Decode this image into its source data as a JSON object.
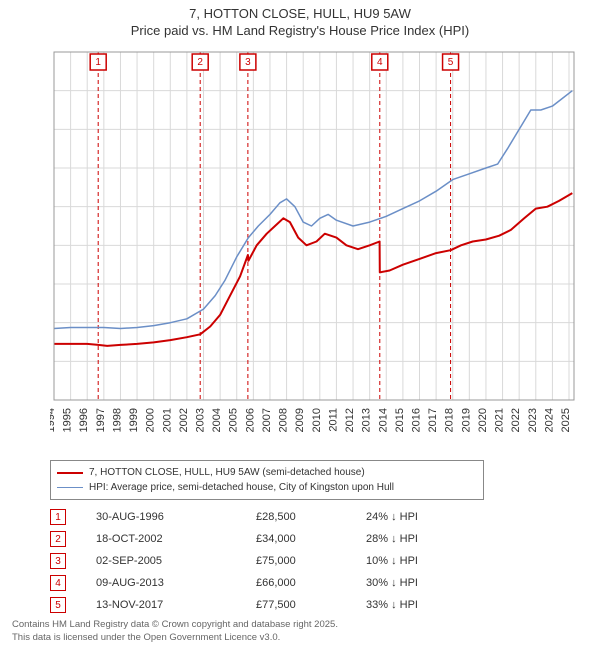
{
  "title_line1": "7, HOTTON CLOSE, HULL, HU9 5AW",
  "title_line2": "Price paid vs. HM Land Registry's House Price Index (HPI)",
  "chart": {
    "type": "line",
    "background_color": "#ffffff",
    "grid_color": "#d9d9d9",
    "x_years": [
      1994,
      1995,
      1996,
      1997,
      1998,
      1999,
      2000,
      2001,
      2002,
      2003,
      2004,
      2005,
      2006,
      2007,
      2008,
      2009,
      2010,
      2011,
      2012,
      2013,
      2014,
      2015,
      2016,
      2017,
      2018,
      2019,
      2020,
      2021,
      2022,
      2023,
      2024,
      2025
    ],
    "ylim": [
      0,
      180000
    ],
    "ytick_step": 20000,
    "ytick_labels": [
      "£0",
      "£20K",
      "£40K",
      "£60K",
      "£80K",
      "£100K",
      "£120K",
      "£140K",
      "£160K",
      "£180K"
    ],
    "series": [
      {
        "name": "hpi",
        "label": "HPI: Average price, semi-detached house, City of Kingston upon Hull",
        "color": "#6b8fc7",
        "width": 1.5,
        "points": [
          [
            1994.0,
            37000
          ],
          [
            1995.0,
            37500
          ],
          [
            1996.0,
            37500
          ],
          [
            1997.0,
            37500
          ],
          [
            1998.0,
            37000
          ],
          [
            1999.0,
            37500
          ],
          [
            2000.0,
            38500
          ],
          [
            2001.0,
            40000
          ],
          [
            2002.0,
            42000
          ],
          [
            2003.0,
            47000
          ],
          [
            2003.7,
            54000
          ],
          [
            2004.3,
            62000
          ],
          [
            2005.0,
            74000
          ],
          [
            2005.7,
            84000
          ],
          [
            2006.3,
            90000
          ],
          [
            2007.0,
            96000
          ],
          [
            2007.6,
            102000
          ],
          [
            2008.0,
            104000
          ],
          [
            2008.5,
            100000
          ],
          [
            2009.0,
            92000
          ],
          [
            2009.5,
            90000
          ],
          [
            2010.0,
            94000
          ],
          [
            2010.5,
            96000
          ],
          [
            2011.0,
            93000
          ],
          [
            2012.0,
            90000
          ],
          [
            2013.0,
            92000
          ],
          [
            2014.0,
            95000
          ],
          [
            2015.0,
            99000
          ],
          [
            2016.0,
            103000
          ],
          [
            2017.0,
            108000
          ],
          [
            2018.0,
            114000
          ],
          [
            2019.0,
            117000
          ],
          [
            2020.0,
            120000
          ],
          [
            2020.7,
            122000
          ],
          [
            2021.3,
            130000
          ],
          [
            2022.0,
            140000
          ],
          [
            2022.7,
            150000
          ],
          [
            2023.3,
            150000
          ],
          [
            2024.0,
            152000
          ],
          [
            2024.6,
            156000
          ],
          [
            2025.2,
            160000
          ]
        ]
      },
      {
        "name": "price_paid",
        "label": "7, HOTTON CLOSE, HULL, HU9 5AW (semi-detached house)",
        "color": "#cc0000",
        "width": 2,
        "points": [
          [
            1994.0,
            29000
          ],
          [
            1995.0,
            29000
          ],
          [
            1996.0,
            29000
          ],
          [
            1996.66,
            28500
          ],
          [
            1997.2,
            28000
          ],
          [
            1998.0,
            28500
          ],
          [
            1999.0,
            29000
          ],
          [
            2000.0,
            29800
          ],
          [
            2001.0,
            31000
          ],
          [
            2002.0,
            32500
          ],
          [
            2002.8,
            34000
          ],
          [
            2003.4,
            38000
          ],
          [
            2004.0,
            44000
          ],
          [
            2004.6,
            54000
          ],
          [
            2005.2,
            64000
          ],
          [
            2005.67,
            75000
          ],
          [
            2005.7,
            72000
          ],
          [
            2006.2,
            80000
          ],
          [
            2006.8,
            86000
          ],
          [
            2007.3,
            90000
          ],
          [
            2007.8,
            94000
          ],
          [
            2008.2,
            92000
          ],
          [
            2008.7,
            84000
          ],
          [
            2009.2,
            80000
          ],
          [
            2009.8,
            82000
          ],
          [
            2010.3,
            86000
          ],
          [
            2011.0,
            84000
          ],
          [
            2011.6,
            80000
          ],
          [
            2012.3,
            78000
          ],
          [
            2013.0,
            80000
          ],
          [
            2013.6,
            82000
          ],
          [
            2013.61,
            66000
          ],
          [
            2014.2,
            67000
          ],
          [
            2015.0,
            70000
          ],
          [
            2016.0,
            73000
          ],
          [
            2017.0,
            76000
          ],
          [
            2017.87,
            77500
          ],
          [
            2017.88,
            77500
          ],
          [
            2018.5,
            80000
          ],
          [
            2019.2,
            82000
          ],
          [
            2020.0,
            83000
          ],
          [
            2020.8,
            85000
          ],
          [
            2021.5,
            88000
          ],
          [
            2022.3,
            94000
          ],
          [
            2023.0,
            99000
          ],
          [
            2023.7,
            100000
          ],
          [
            2024.4,
            103000
          ],
          [
            2025.2,
            107000
          ]
        ]
      }
    ],
    "sale_markers": [
      {
        "n": "1",
        "year": 1996.66
      },
      {
        "n": "2",
        "year": 2002.8
      },
      {
        "n": "3",
        "year": 2005.67
      },
      {
        "n": "4",
        "year": 2013.61
      },
      {
        "n": "5",
        "year": 2017.87
      }
    ],
    "marker_color": "#cc0000",
    "marker_dash": "4,3"
  },
  "legend": {
    "items": [
      {
        "color": "#cc0000",
        "width": 2,
        "label": "7, HOTTON CLOSE, HULL, HU9 5AW (semi-detached house)"
      },
      {
        "color": "#6b8fc7",
        "width": 1.5,
        "label": "HPI: Average price, semi-detached house, City of Kingston upon Hull"
      }
    ]
  },
  "sales": [
    {
      "n": "1",
      "date": "30-AUG-1996",
      "price": "£28,500",
      "diff": "24% ↓ HPI"
    },
    {
      "n": "2",
      "date": "18-OCT-2002",
      "price": "£34,000",
      "diff": "28% ↓ HPI"
    },
    {
      "n": "3",
      "date": "02-SEP-2005",
      "price": "£75,000",
      "diff": "10% ↓ HPI"
    },
    {
      "n": "4",
      "date": "09-AUG-2013",
      "price": "£66,000",
      "diff": "30% ↓ HPI"
    },
    {
      "n": "5",
      "date": "13-NOV-2017",
      "price": "£77,500",
      "diff": "33% ↓ HPI"
    }
  ],
  "footer_line1": "Contains HM Land Registry data © Crown copyright and database right 2025.",
  "footer_line2": "This data is licensed under the Open Government Licence v3.0."
}
